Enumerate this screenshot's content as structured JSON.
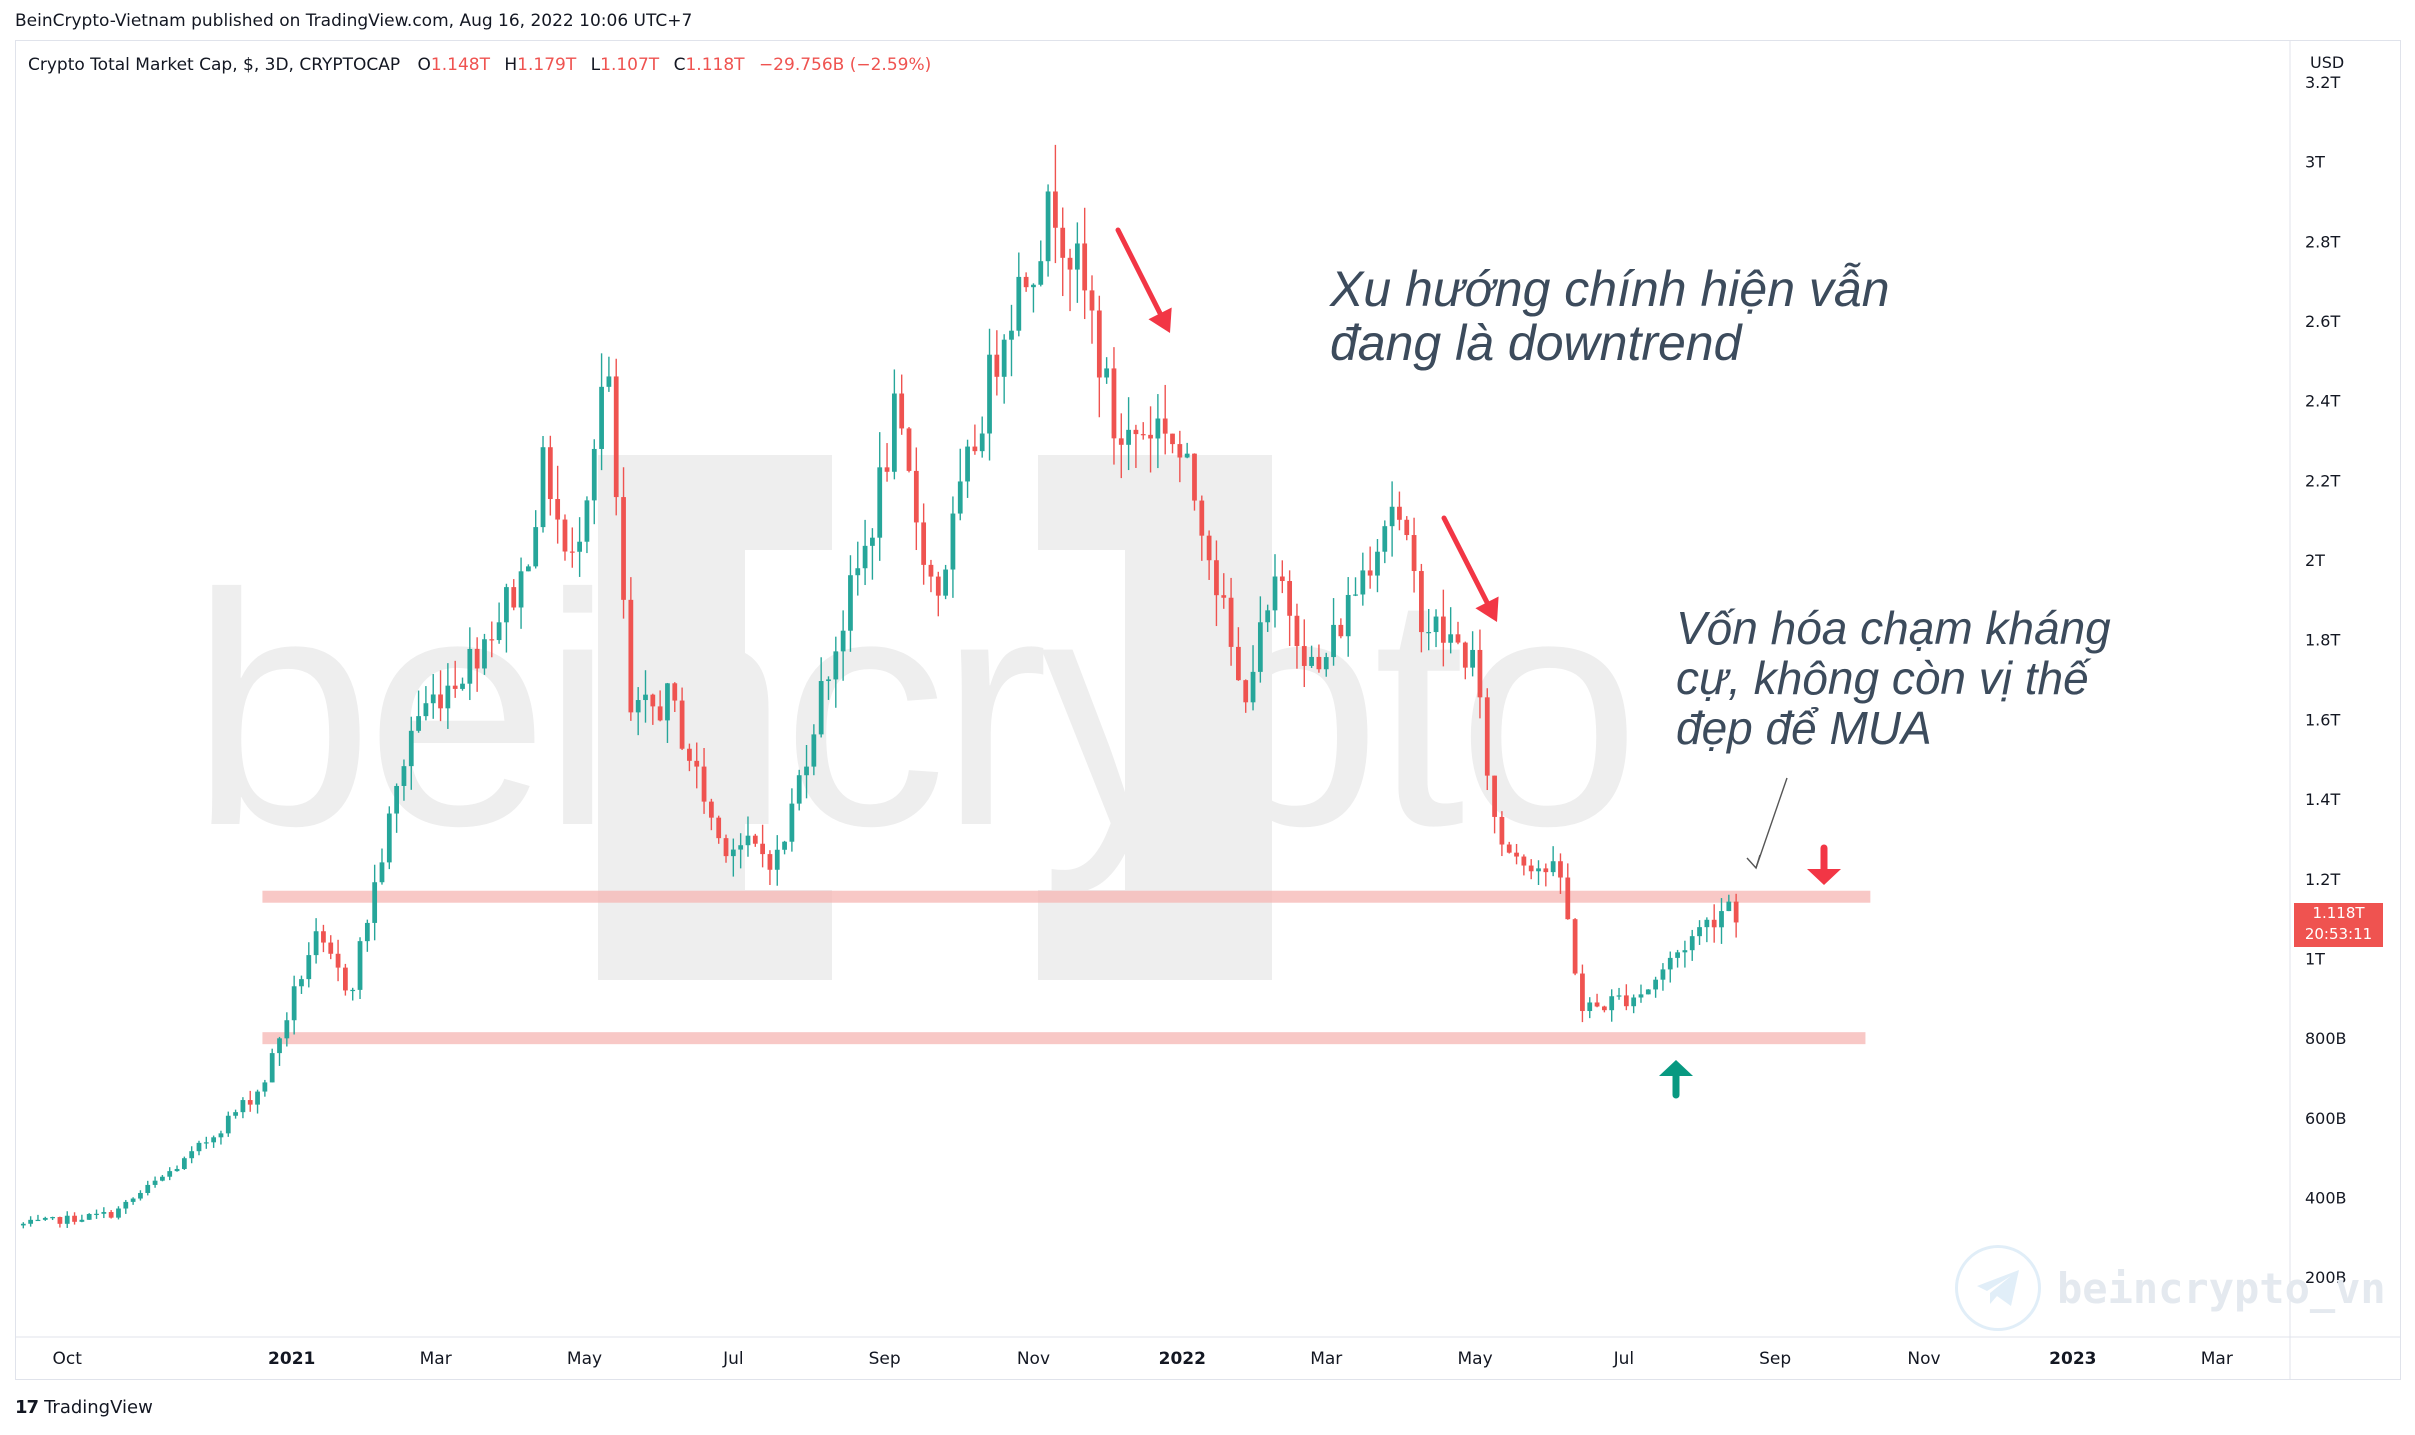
{
  "header": {
    "publisher": "BeinCrypto-Vietnam published on TradingView.com, Aug 16, 2022 10:06 UTC+7"
  },
  "legend": {
    "symbol": "Crypto Total Market Cap, $, 3D, CRYPTOCAP",
    "o_label": "O",
    "o_value": "1.148T",
    "h_label": "H",
    "h_value": "1.179T",
    "l_label": "L",
    "l_value": "1.107T",
    "c_label": "C",
    "c_value": "1.118T",
    "change": "−29.756B (−2.59%)"
  },
  "price_tag": {
    "price": "1.118T",
    "countdown": "20:53:11"
  },
  "currency": "USD",
  "annotations": {
    "note1_line1": "Xu hướng chính hiện vẫn",
    "note1_line2": "đang là downtrend",
    "note2_line1": "Vốn hóa chạm kháng",
    "note2_line2": "cự, không còn vị thế",
    "note2_line3": "đẹp để MUA"
  },
  "watermark": {
    "main": "beincrypto",
    "channel": "beincrypto_vn"
  },
  "footer": {
    "brand": "TradingView",
    "logo": "17"
  },
  "colors": {
    "up": "#26a69a",
    "down": "#ef5350",
    "zone": "#f5b5b3",
    "arrow_red": "#f23645",
    "arrow_green": "#089981"
  },
  "chart_data": {
    "type": "candlestick",
    "title": "Crypto Total Market Cap, $, 3D, CRYPTOCAP",
    "ylabel": "USD",
    "y_scale": "linear",
    "ylim": [
      0.05,
      3.25
    ],
    "y_ticks": [
      {
        "v": 3.2,
        "label": "3.2T"
      },
      {
        "v": 3.0,
        "label": "3T"
      },
      {
        "v": 2.8,
        "label": "2.8T"
      },
      {
        "v": 2.6,
        "label": "2.6T"
      },
      {
        "v": 2.4,
        "label": "2.4T"
      },
      {
        "v": 2.2,
        "label": "2.2T"
      },
      {
        "v": 2.0,
        "label": "2T"
      },
      {
        "v": 1.8,
        "label": "1.8T"
      },
      {
        "v": 1.6,
        "label": "1.6T"
      },
      {
        "v": 1.4,
        "label": "1.4T"
      },
      {
        "v": 1.2,
        "label": "1.2T"
      },
      {
        "v": 1.0,
        "label": "1T"
      },
      {
        "v": 0.8,
        "label": "800B"
      },
      {
        "v": 0.6,
        "label": "600B"
      },
      {
        "v": 0.4,
        "label": "400B"
      },
      {
        "v": 0.2,
        "label": "200B"
      }
    ],
    "x_range": [
      "2020-09-10",
      "2023-03-31"
    ],
    "x_ticks": [
      {
        "date": "2020-10-01",
        "label": "Oct",
        "bold": false
      },
      {
        "date": "2021-01-01",
        "label": "2021",
        "bold": true
      },
      {
        "date": "2021-03-01",
        "label": "Mar",
        "bold": false
      },
      {
        "date": "2021-05-01",
        "label": "May",
        "bold": false
      },
      {
        "date": "2021-07-01",
        "label": "Jul",
        "bold": false
      },
      {
        "date": "2021-09-01",
        "label": "Sep",
        "bold": false
      },
      {
        "date": "2021-11-01",
        "label": "Nov",
        "bold": false
      },
      {
        "date": "2022-01-01",
        "label": "2022",
        "bold": true
      },
      {
        "date": "2022-03-01",
        "label": "Mar",
        "bold": false
      },
      {
        "date": "2022-05-01",
        "label": "May",
        "bold": false
      },
      {
        "date": "2022-07-01",
        "label": "Jul",
        "bold": false
      },
      {
        "date": "2022-09-01",
        "label": "Sep",
        "bold": false
      },
      {
        "date": "2022-11-01",
        "label": "Nov",
        "bold": false
      },
      {
        "date": "2023-01-01",
        "label": "2023",
        "bold": true
      },
      {
        "date": "2023-03-01",
        "label": "Mar",
        "bold": false
      }
    ],
    "bar_interval_days": 3,
    "price_path": [
      [
        "2020-09-10",
        0.33
      ],
      [
        "2020-10-20",
        0.36
      ],
      [
        "2020-11-20",
        0.5
      ],
      [
        "2020-12-20",
        0.68
      ],
      [
        "2021-01-10",
        1.05
      ],
      [
        "2021-01-25",
        0.92
      ],
      [
        "2021-02-20",
        1.6
      ],
      [
        "2021-03-15",
        1.75
      ],
      [
        "2021-04-05",
        1.95
      ],
      [
        "2021-04-15",
        2.25
      ],
      [
        "2021-04-25",
        1.95
      ],
      [
        "2021-05-10",
        2.5
      ],
      [
        "2021-05-20",
        1.6
      ],
      [
        "2021-06-05",
        1.65
      ],
      [
        "2021-06-25",
        1.3
      ],
      [
        "2021-07-20",
        1.25
      ],
      [
        "2021-08-05",
        1.65
      ],
      [
        "2021-08-25",
        2.05
      ],
      [
        "2021-09-05",
        2.35
      ],
      [
        "2021-09-22",
        1.9
      ],
      [
        "2021-10-20",
        2.6
      ],
      [
        "2021-11-10",
        2.9
      ],
      [
        "2021-11-25",
        2.6
      ],
      [
        "2021-12-05",
        2.3
      ],
      [
        "2021-12-25",
        2.35
      ],
      [
        "2022-01-10",
        2.1
      ],
      [
        "2022-01-25",
        1.65
      ],
      [
        "2022-02-10",
        1.95
      ],
      [
        "2022-02-25",
        1.7
      ],
      [
        "2022-03-28",
        2.15
      ],
      [
        "2022-04-10",
        1.85
      ],
      [
        "2022-04-30",
        1.75
      ],
      [
        "2022-05-10",
        1.3
      ],
      [
        "2022-06-05",
        1.2
      ],
      [
        "2022-06-14",
        0.87
      ],
      [
        "2022-06-20",
        0.88
      ],
      [
        "2022-07-10",
        0.92
      ],
      [
        "2022-07-25",
        1.03
      ],
      [
        "2022-08-14",
        1.15
      ],
      [
        "2022-08-16",
        1.118
      ]
    ],
    "zones": [
      {
        "y": 1.155,
        "x_start": "2020-12-20",
        "x_end": "2022-10-10"
      },
      {
        "y": 0.8,
        "x_start": "2020-12-20",
        "x_end": "2022-10-08"
      }
    ],
    "last_price": 1.118
  }
}
